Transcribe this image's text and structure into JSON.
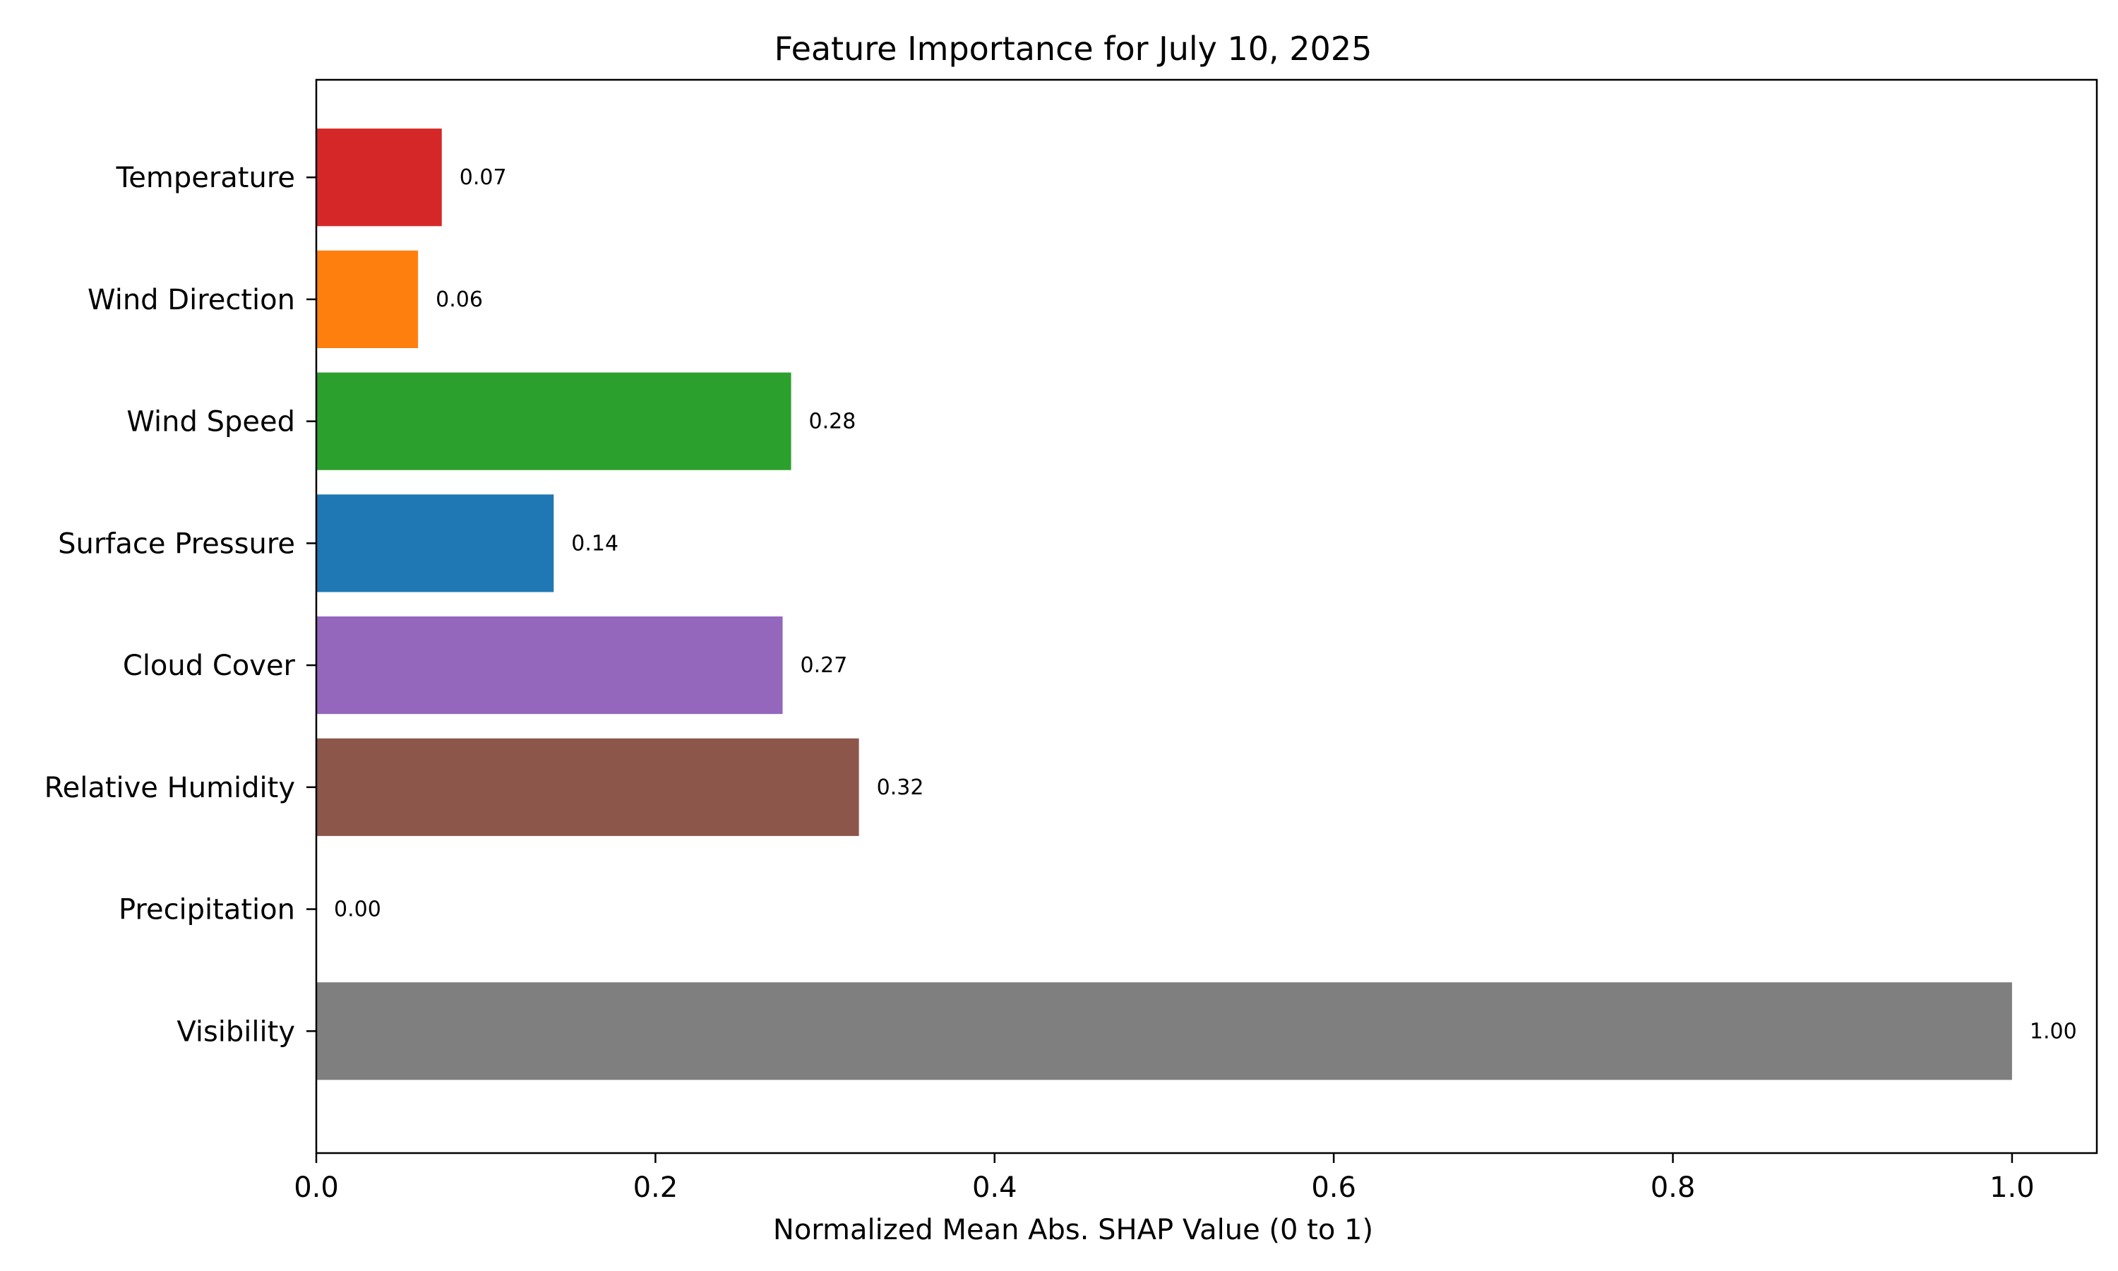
{
  "chart_data": {
    "type": "bar",
    "orientation": "horizontal",
    "title": "Feature Importance for July 10, 2025",
    "xlabel": "Normalized Mean Abs. SHAP Value (0 to 1)",
    "ylabel": "",
    "xlim": [
      0,
      1.05
    ],
    "xticks": [
      0.0,
      0.2,
      0.4,
      0.6,
      0.8,
      1.0
    ],
    "xtick_labels": [
      "0.0",
      "0.2",
      "0.4",
      "0.6",
      "0.8",
      "1.0"
    ],
    "grid": false,
    "categories": [
      "Temperature",
      "Wind Direction",
      "Wind Speed",
      "Surface Pressure",
      "Cloud Cover",
      "Relative Humidity",
      "Precipitation",
      "Visibility"
    ],
    "values": [
      0.074,
      0.06,
      0.28,
      0.14,
      0.275,
      0.32,
      0.0,
      1.0
    ],
    "value_labels": [
      "0.07",
      "0.06",
      "0.28",
      "0.14",
      "0.27",
      "0.32",
      "0.00",
      "1.00"
    ],
    "colors": [
      "#d62728",
      "#ff7f0e",
      "#2ca02c",
      "#1f77b4",
      "#9467bd",
      "#8c564b",
      "#e377c2",
      "#7f7f7f"
    ]
  }
}
